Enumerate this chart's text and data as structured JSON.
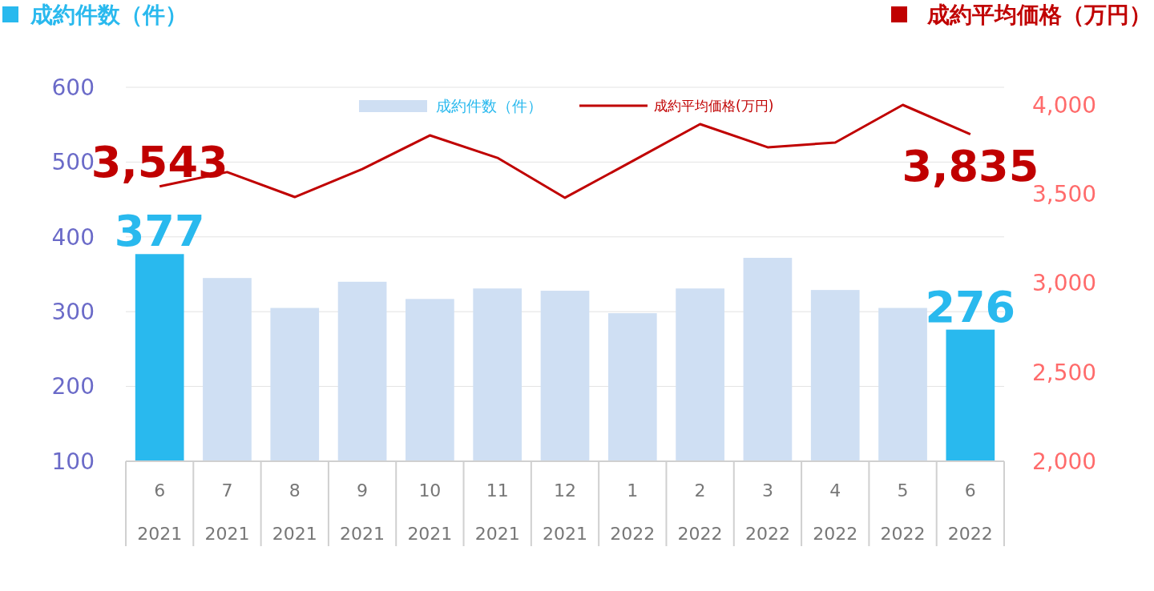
{
  "chart_data": {
    "type": "bar",
    "ylabel": "成約件数（件）",
    "y2label": "成約平均価格（万円）",
    "categories": [
      "6\n2021",
      "7\n2021",
      "8\n2021",
      "9\n2021",
      "10\n2021",
      "11\n2021",
      "12\n2021",
      "1\n2022",
      "2\n2022",
      "3\n2022",
      "4\n2022",
      "5\n2022",
      "6\n2022"
    ],
    "series": [
      {
        "name": "成約件数（件）",
        "color": "#cfdff3",
        "colors": [
          "#29b9ee",
          "#cfdff3",
          "#cfdff3",
          "#cfdff3",
          "#cfdff3",
          "#cfdff3",
          "#cfdff3",
          "#cfdff3",
          "#cfdff3",
          "#cfdff3",
          "#cfdff3",
          "#cfdff3",
          "#29b9ee"
        ],
        "values": [
          377,
          345,
          305,
          340,
          317,
          331,
          328,
          298,
          331,
          372,
          329,
          305,
          276
        ],
        "value_labels": [
          "377",
          null,
          null,
          null,
          null,
          null,
          null,
          null,
          null,
          null,
          null,
          null,
          "276"
        ]
      },
      {
        "name": "成約平均価格(万円)",
        "type": "line",
        "axis": "y2",
        "color": "#c00000",
        "values": [
          3543,
          3623,
          3483,
          3640,
          3829,
          3703,
          3479,
          3685,
          3892,
          3762,
          3789,
          4000,
          3835
        ],
        "value_labels": [
          "3,543",
          null,
          null,
          null,
          null,
          null,
          null,
          null,
          null,
          null,
          null,
          null,
          "3,835"
        ]
      }
    ],
    "ylim": [
      100,
      600
    ],
    "yticks": [
      100,
      200,
      300,
      400,
      500,
      600
    ],
    "y2lim": [
      2000,
      4000
    ],
    "y2ticks": [
      {
        "value": 2000,
        "label": "2,000"
      },
      {
        "value": 2500,
        "label": "2,500"
      },
      {
        "value": 3000,
        "label": "3,000"
      },
      {
        "value": 3500,
        "label": "3,500"
      },
      {
        "value": 4000,
        "label": "4,000"
      }
    ],
    "grid": "y",
    "legend": "top",
    "marker": "none",
    "line_style": "solid"
  }
}
